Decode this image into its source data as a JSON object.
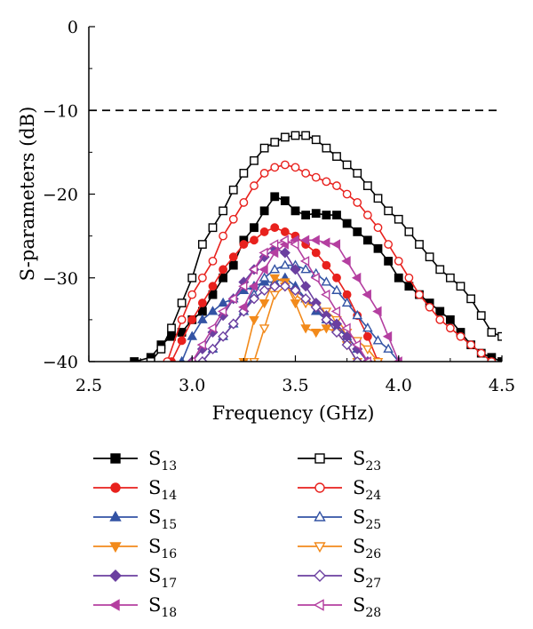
{
  "chart_data": {
    "type": "line",
    "title": "",
    "xlabel": "Frequency (GHz)",
    "ylabel": "S-parameters (dB)",
    "xlim": [
      2.5,
      4.5
    ],
    "ylim": [
      -40,
      0
    ],
    "xticks": [
      2.5,
      3.0,
      3.5,
      4.0,
      4.5
    ],
    "xtick_labels": [
      "2.5",
      "3.0",
      "3.5",
      "4.0",
      "4.5"
    ],
    "yticks": [
      0,
      -10,
      -20,
      -30,
      -40
    ],
    "ytick_labels": [
      "0",
      "−10",
      "−20",
      "−30",
      "−40"
    ],
    "reference_line": {
      "y": -10,
      "style": "dashed"
    },
    "grid": false,
    "legend_position": "bottom",
    "series": [
      {
        "name": "S",
        "sub": "13",
        "color": "#000000",
        "marker": "square",
        "filled": true,
        "x": [
          2.72,
          2.8,
          2.85,
          2.9,
          2.95,
          3.0,
          3.05,
          3.1,
          3.15,
          3.2,
          3.25,
          3.3,
          3.35,
          3.4,
          3.45,
          3.5,
          3.55,
          3.6,
          3.65,
          3.7,
          3.75,
          3.8,
          3.85,
          3.9,
          3.95,
          4.0,
          4.05,
          4.1,
          4.15,
          4.2,
          4.25,
          4.3,
          4.35,
          4.4,
          4.45,
          4.5
        ],
        "y": [
          -40,
          -39.5,
          -38,
          -37,
          -36.5,
          -35,
          -34,
          -32,
          -30,
          -28.5,
          -25.5,
          -24,
          -22,
          -20.3,
          -20.8,
          -22,
          -22.5,
          -22.3,
          -22.5,
          -22.5,
          -23.5,
          -24.5,
          -25.5,
          -26.5,
          -28,
          -30,
          -31,
          -32,
          -33,
          -34,
          -35,
          -36.5,
          -38,
          -39,
          -39.5,
          -40
        ]
      },
      {
        "name": "S",
        "sub": "23",
        "color": "#000000",
        "marker": "square",
        "filled": false,
        "x": [
          2.8,
          2.85,
          2.9,
          2.95,
          3.0,
          3.05,
          3.1,
          3.15,
          3.2,
          3.25,
          3.3,
          3.35,
          3.4,
          3.45,
          3.5,
          3.55,
          3.6,
          3.65,
          3.7,
          3.75,
          3.8,
          3.85,
          3.9,
          3.95,
          4.0,
          4.05,
          4.1,
          4.15,
          4.2,
          4.25,
          4.3,
          4.35,
          4.4,
          4.45,
          4.5
        ],
        "y": [
          -40,
          -38.5,
          -36,
          -33,
          -30,
          -26,
          -24,
          -22,
          -19.5,
          -17.5,
          -16,
          -14.5,
          -13.8,
          -13.2,
          -13,
          -13,
          -13.5,
          -14.5,
          -15.5,
          -16.5,
          -17.5,
          -19,
          -20.5,
          -22,
          -23,
          -24.5,
          -26,
          -27.5,
          -29,
          -30,
          -31,
          -32.5,
          -34.5,
          -36.5,
          -37
        ]
      },
      {
        "name": "S",
        "sub": "14",
        "color": "#e8211d",
        "marker": "circle",
        "filled": true,
        "x": [
          2.9,
          2.95,
          3.0,
          3.05,
          3.1,
          3.15,
          3.2,
          3.25,
          3.3,
          3.35,
          3.4,
          3.45,
          3.5,
          3.55,
          3.6,
          3.65,
          3.7,
          3.75,
          3.8,
          3.85,
          3.9
        ],
        "y": [
          -40,
          -37.5,
          -35,
          -33,
          -31,
          -29,
          -27.5,
          -26,
          -25.5,
          -24.5,
          -24,
          -24.5,
          -25,
          -26,
          -27,
          -28.5,
          -30,
          -32,
          -34.5,
          -37,
          -40
        ]
      },
      {
        "name": "S",
        "sub": "24",
        "color": "#e8211d",
        "marker": "circle",
        "filled": false,
        "x": [
          2.88,
          2.95,
          3.0,
          3.05,
          3.1,
          3.15,
          3.2,
          3.25,
          3.3,
          3.35,
          3.4,
          3.45,
          3.5,
          3.55,
          3.6,
          3.65,
          3.7,
          3.75,
          3.8,
          3.85,
          3.9,
          3.95,
          4.0,
          4.05,
          4.1,
          4.15,
          4.2,
          4.25,
          4.3,
          4.35,
          4.4,
          4.45
        ],
        "y": [
          -40,
          -35,
          -32,
          -30,
          -28,
          -25,
          -23,
          -21,
          -19,
          -17.5,
          -16.8,
          -16.5,
          -16.8,
          -17.5,
          -18,
          -18.5,
          -19,
          -20,
          -21,
          -22.5,
          -24,
          -26,
          -28,
          -30,
          -32,
          -33.5,
          -35,
          -36,
          -37,
          -38,
          -39,
          -40
        ]
      },
      {
        "name": "S",
        "sub": "15",
        "color": "#3353a4",
        "marker": "triangle-up",
        "filled": true,
        "x": [
          2.95,
          3.0,
          3.05,
          3.1,
          3.15,
          3.2,
          3.25,
          3.3,
          3.35,
          3.4,
          3.45,
          3.5,
          3.55,
          3.6,
          3.65,
          3.7,
          3.75,
          3.8,
          3.85
        ],
        "y": [
          -40,
          -37,
          -35,
          -34,
          -33,
          -32.5,
          -31.5,
          -31,
          -30.5,
          -30.5,
          -30,
          -31,
          -32.5,
          -34,
          -35,
          -36,
          -37,
          -38.5,
          -40
        ]
      },
      {
        "name": "S",
        "sub": "25",
        "color": "#3353a4",
        "marker": "triangle-up",
        "filled": false,
        "x": [
          3.05,
          3.1,
          3.15,
          3.2,
          3.25,
          3.3,
          3.35,
          3.4,
          3.45,
          3.5,
          3.55,
          3.6,
          3.65,
          3.7,
          3.75,
          3.8,
          3.85,
          3.9,
          3.95,
          4.0
        ],
        "y": [
          -40,
          -38.5,
          -37,
          -35.5,
          -34,
          -32,
          -30,
          -29,
          -28.5,
          -28.5,
          -29,
          -29.5,
          -30.5,
          -31.5,
          -33,
          -34.5,
          -36,
          -37.5,
          -38.5,
          -40
        ]
      },
      {
        "name": "S",
        "sub": "16",
        "color": "#f28a1b",
        "marker": "triangle-down",
        "filled": true,
        "x": [
          3.25,
          3.3,
          3.35,
          3.4,
          3.45,
          3.5,
          3.55,
          3.6,
          3.65,
          3.7,
          3.75,
          3.8
        ],
        "y": [
          -40,
          -35,
          -33,
          -30,
          -30.5,
          -33,
          -36,
          -36.5,
          -36,
          -36.5,
          -38,
          -40
        ]
      },
      {
        "name": "S",
        "sub": "26",
        "color": "#f28a1b",
        "marker": "triangle-down",
        "filled": false,
        "x": [
          3.3,
          3.35,
          3.4,
          3.45,
          3.5,
          3.55,
          3.6,
          3.65,
          3.7,
          3.75,
          3.8,
          3.85,
          3.9
        ],
        "y": [
          -40,
          -36,
          -32,
          -31,
          -32,
          -33,
          -33.5,
          -34,
          -35,
          -36.5,
          -37.5,
          -38.5,
          -40
        ]
      },
      {
        "name": "S",
        "sub": "17",
        "color": "#6b3fa0",
        "marker": "diamond",
        "filled": true,
        "x": [
          3.0,
          3.05,
          3.1,
          3.15,
          3.2,
          3.25,
          3.3,
          3.35,
          3.4,
          3.45,
          3.5,
          3.55,
          3.6,
          3.65,
          3.7,
          3.75,
          3.8,
          3.85
        ],
        "y": [
          -40,
          -38.5,
          -36.5,
          -34.5,
          -32.5,
          -30.5,
          -29,
          -27.5,
          -26.5,
          -27,
          -29,
          -31,
          -33,
          -34.5,
          -35.5,
          -37,
          -38.5,
          -40
        ]
      },
      {
        "name": "S",
        "sub": "27",
        "color": "#6b3fa0",
        "marker": "diamond",
        "filled": false,
        "x": [
          3.05,
          3.1,
          3.15,
          3.2,
          3.25,
          3.3,
          3.35,
          3.4,
          3.45,
          3.5,
          3.55,
          3.6,
          3.65,
          3.7,
          3.75,
          3.8
        ],
        "y": [
          -40,
          -38.5,
          -37,
          -35.5,
          -34,
          -32.5,
          -31.5,
          -31,
          -31,
          -31.5,
          -32.5,
          -33.5,
          -35,
          -36.5,
          -38,
          -40
        ]
      },
      {
        "name": "S",
        "sub": "18",
        "color": "#b43fa0",
        "marker": "triangle-left",
        "filled": true,
        "x": [
          3.25,
          3.3,
          3.35,
          3.4,
          3.45,
          3.5,
          3.55,
          3.6,
          3.65,
          3.7,
          3.75,
          3.8,
          3.85,
          3.9,
          3.95,
          4.0
        ],
        "y": [
          -33.5,
          -31,
          -29,
          -27,
          -26,
          -25.5,
          -25.5,
          -25.5,
          -25.8,
          -26,
          -28,
          -30,
          -32,
          -34,
          -37,
          -40
        ]
      },
      {
        "name": "S",
        "sub": "28",
        "color": "#b43fa0",
        "marker": "triangle-left",
        "filled": false,
        "x": [
          3.0,
          3.05,
          3.1,
          3.15,
          3.2,
          3.25,
          3.3,
          3.35,
          3.4,
          3.45,
          3.5,
          3.55,
          3.6,
          3.65,
          3.7,
          3.75,
          3.8,
          3.85
        ],
        "y": [
          -40,
          -38,
          -36,
          -34,
          -32.5,
          -31,
          -29,
          -27,
          -26,
          -25.5,
          -26,
          -28,
          -30,
          -32,
          -34,
          -36,
          -38,
          -40
        ]
      }
    ]
  }
}
